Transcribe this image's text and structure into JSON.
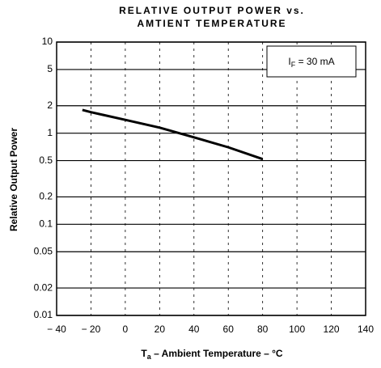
{
  "chart_data": {
    "type": "line",
    "title": [
      "RELATIVE OUTPUT POWER vs.",
      "AMTIENT TEMPERATURE"
    ],
    "ylabel": "Relative Output Power",
    "xlabel": {
      "symbol": "T",
      "subscript": "a",
      "text": " – Ambient Temperature – °C"
    },
    "annotation": {
      "symbol": "I",
      "subscript": "F",
      "text": " = 30 mA"
    },
    "x": [
      -25,
      -20,
      0,
      20,
      40,
      60,
      80
    ],
    "series": [
      {
        "name": "IF = 30 mA",
        "color": "#000000",
        "values": [
          1.8,
          1.7,
          1.4,
          1.15,
          0.9,
          0.7,
          0.52
        ]
      }
    ],
    "xlim": [
      -40,
      140
    ],
    "xticks": [
      {
        "value": -40,
        "label": "− 40"
      },
      {
        "value": -20,
        "label": "− 20"
      },
      0,
      20,
      40,
      60,
      80,
      100,
      120,
      140
    ],
    "ylim": [
      0.01,
      10
    ],
    "log_y": true,
    "yticks": [
      10,
      5,
      2,
      1,
      0.5,
      0.2,
      0.1,
      0.05,
      0.02,
      0.01
    ],
    "grid": true
  }
}
